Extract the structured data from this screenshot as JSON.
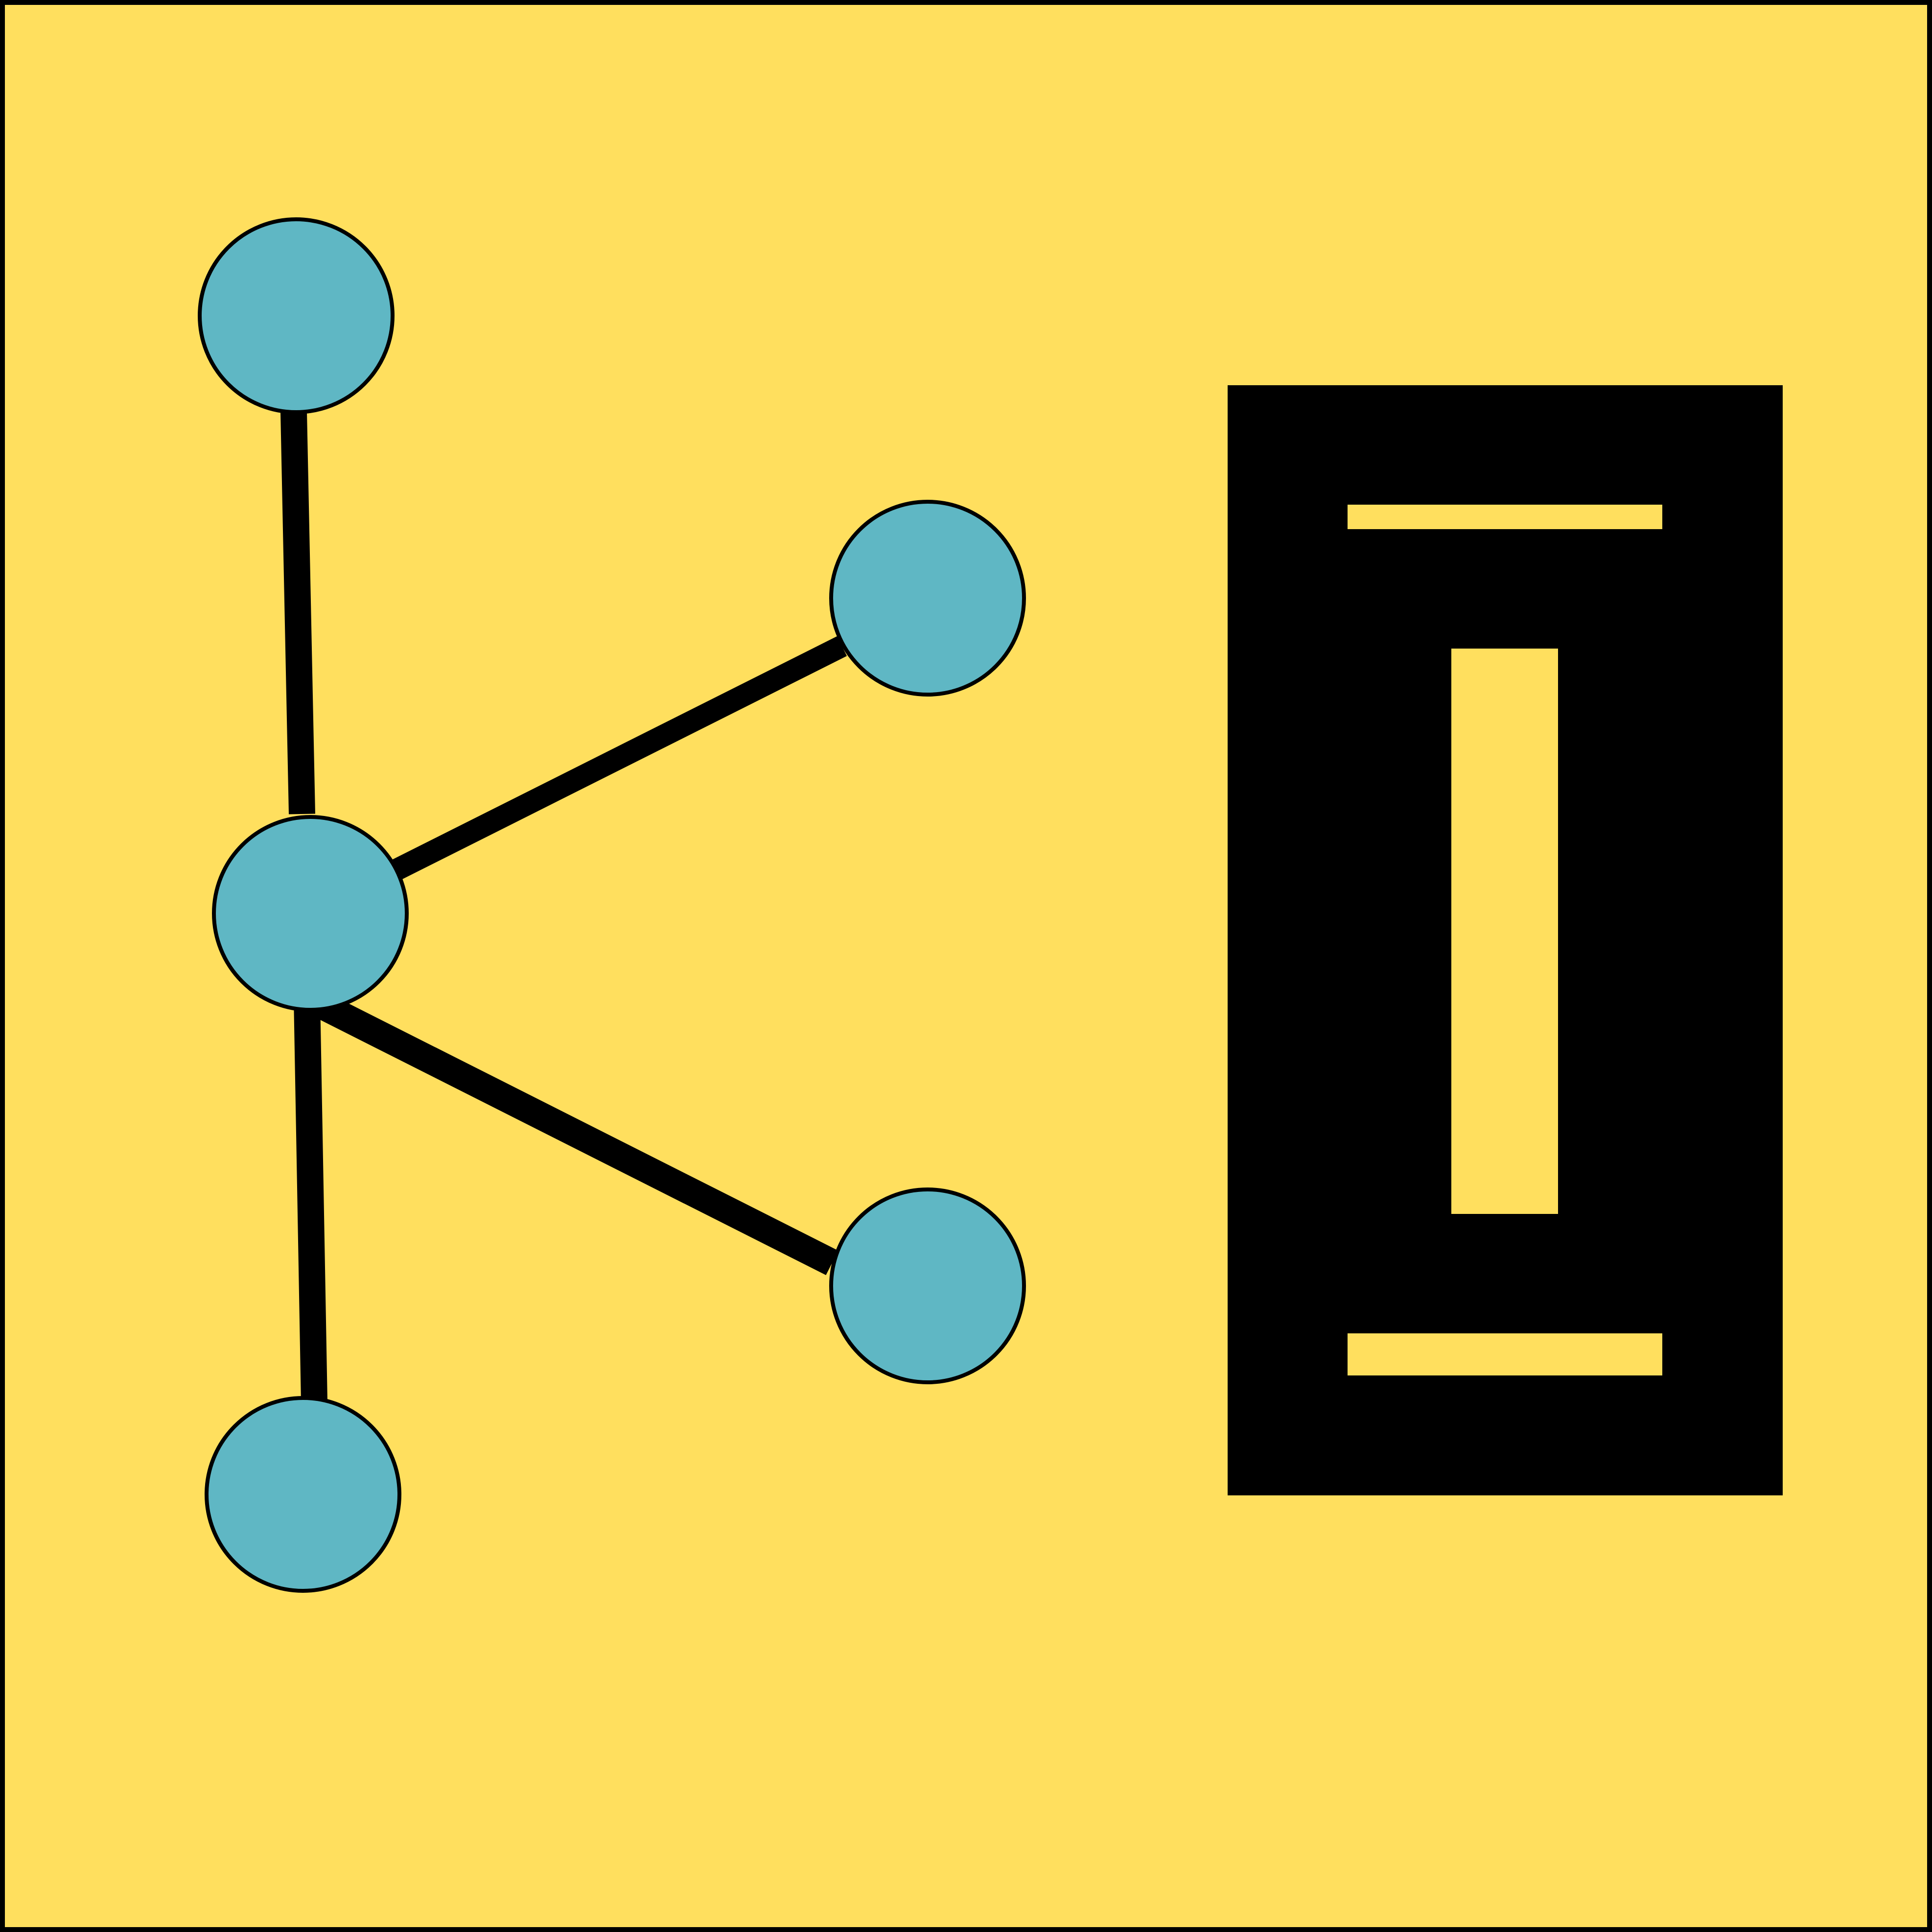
{
  "colors": {
    "background": "#ffdf5e",
    "border": "#000000",
    "node_fill": "#5fb7c4",
    "node_stroke": "#000000",
    "edge": "#000000",
    "emblem_fill": "#000000",
    "emblem_cutout": "#ffdf5e"
  },
  "graph": {
    "nodes": [
      {
        "id": "top"
      },
      {
        "id": "hub"
      },
      {
        "id": "bottom"
      },
      {
        "id": "upper-right"
      },
      {
        "id": "lower-right"
      }
    ],
    "edges": [
      {
        "from": "top",
        "to": "hub"
      },
      {
        "from": "hub",
        "to": "upper-right"
      },
      {
        "from": "hub",
        "to": "lower-right"
      },
      {
        "from": "hub",
        "to": "bottom"
      }
    ]
  },
  "emblem": {
    "icon": "i-beam-icon"
  }
}
